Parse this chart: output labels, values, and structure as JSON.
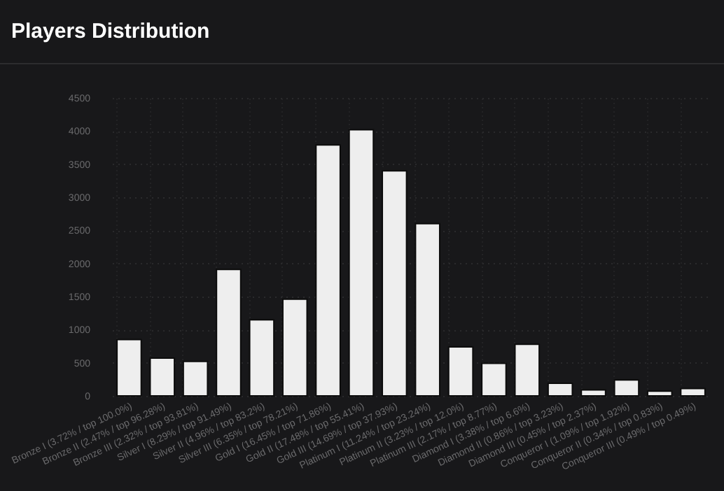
{
  "chart_data": {
    "type": "bar",
    "title": "Players Distribution",
    "categories": [
      "Bronze I (3.72% / top 100.0%)",
      "Bronze II (2.47% / top 96.28%)",
      "Bronze III (2.32% / top 93.81%)",
      "Silver I (8.29% / top 91.49%)",
      "Silver II (4.96% / top 83.2%)",
      "Silver III (6.35% / top 78.21%)",
      "Gold I (16.45% / top 71.86%)",
      "Gold II (17.48% / top 55.41%)",
      "Gold III (14.69% / top 37.93%)",
      "Platinum I (11.24% / top 23.24%)",
      "Platinum II (3.23% / top 12.0%)",
      "Platinum III (2.17% / top 8.77%)",
      "Diamond I (3.38% / top 6.6%)",
      "Diamond II (0.86% / top 3.23%)",
      "Diamond III (0.45% / top 2.37%)",
      "Conqueror I (1.09% / top 1.92%)",
      "Conqueror II (0.34% / top 0.83%)",
      "Conqueror III (0.49% / top 0.49%)"
    ],
    "values": [
      850,
      570,
      520,
      1910,
      1150,
      1460,
      3790,
      4020,
      3400,
      2600,
      740,
      490,
      780,
      190,
      90,
      240,
      70,
      110
    ],
    "color": "#eeeeee",
    "ylim": [
      0,
      4500
    ],
    "yticks": [
      0,
      500,
      1000,
      1500,
      2000,
      2500,
      3000,
      3500,
      4000,
      4500
    ],
    "grid": true
  }
}
